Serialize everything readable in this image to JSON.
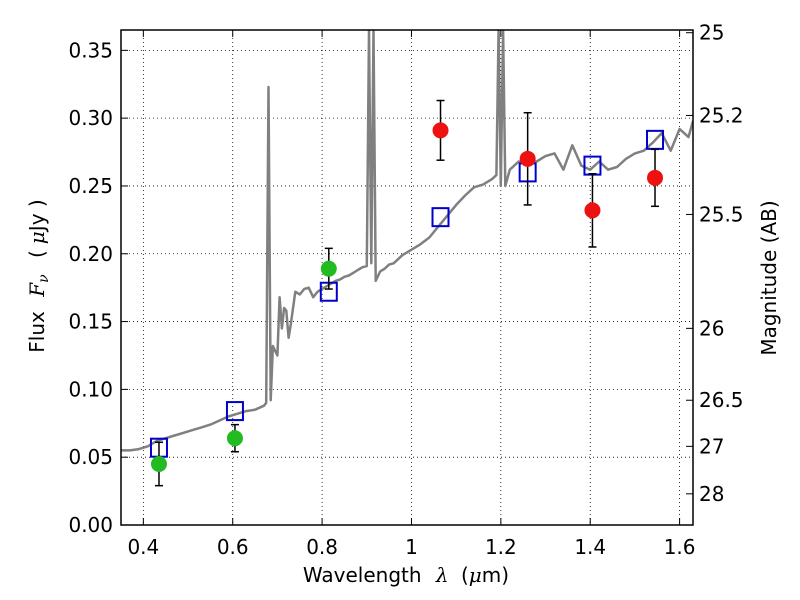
{
  "chart_data": {
    "type": "scatter",
    "xlabel": "Wavelength",
    "xlabel_symbol": "λ",
    "xlabel_unit_open": "(",
    "xlabel_unit_mu": "μ",
    "xlabel_unit_close": "m)",
    "ylabel": "Flux",
    "ylabel_symbol": "F",
    "ylabel_symbol_sub": "ν",
    "ylabel_unit_open": "(",
    "ylabel_unit_mu": "μ",
    "ylabel_unit_close": "Jy )",
    "y2label": "Magnitude (AB)",
    "xlim": [
      0.35,
      1.63
    ],
    "ylim": [
      0.0,
      0.365
    ],
    "x_ticks": [
      "0.4",
      "0.6",
      "0.8",
      "1",
      "1.2",
      "1.4",
      "1.6"
    ],
    "x_tick_values": [
      0.4,
      0.6,
      0.8,
      1.0,
      1.2,
      1.4,
      1.6
    ],
    "y_ticks": [
      "0.00",
      "0.05",
      "0.10",
      "0.15",
      "0.20",
      "0.25",
      "0.30",
      "0.35"
    ],
    "y_tick_values": [
      0.0,
      0.05,
      0.1,
      0.15,
      0.2,
      0.25,
      0.3,
      0.35
    ],
    "y2_ticks": [
      {
        "label": "25",
        "flux": 0.363
      },
      {
        "label": "25.2",
        "flux": 0.302
      },
      {
        "label": "25.5",
        "flux": 0.229
      },
      {
        "label": "26",
        "flux": 0.145
      },
      {
        "label": "26.5",
        "flux": 0.092
      },
      {
        "label": "27",
        "flux": 0.058
      },
      {
        "label": "28",
        "flux": 0.023
      }
    ],
    "grid": true,
    "series": [
      {
        "kind": "model_spectrum",
        "color": "#808080",
        "x": [
          0.35,
          0.37,
          0.39,
          0.41,
          0.43,
          0.45,
          0.47,
          0.49,
          0.51,
          0.53,
          0.55,
          0.57,
          0.59,
          0.61,
          0.63,
          0.65,
          0.67,
          0.675,
          0.68,
          0.685,
          0.69,
          0.7,
          0.705,
          0.71,
          0.715,
          0.72,
          0.725,
          0.73,
          0.74,
          0.75,
          0.76,
          0.77,
          0.78,
          0.79,
          0.8,
          0.81,
          0.82,
          0.83,
          0.84,
          0.85,
          0.86,
          0.87,
          0.88,
          0.89,
          0.9,
          0.905,
          0.91,
          0.915,
          0.92,
          0.93,
          0.94,
          0.95,
          0.96,
          0.97,
          0.98,
          0.99,
          1.0,
          1.02,
          1.04,
          1.06,
          1.08,
          1.1,
          1.12,
          1.14,
          1.16,
          1.18,
          1.19,
          1.195,
          1.2,
          1.205,
          1.21,
          1.22,
          1.24,
          1.26,
          1.28,
          1.3,
          1.32,
          1.34,
          1.36,
          1.38,
          1.4,
          1.42,
          1.44,
          1.46,
          1.48,
          1.5,
          1.52,
          1.54,
          1.56,
          1.58,
          1.6,
          1.62,
          1.63
        ],
        "y": [
          0.055,
          0.055,
          0.056,
          0.058,
          0.062,
          0.064,
          0.066,
          0.068,
          0.07,
          0.072,
          0.074,
          0.077,
          0.08,
          0.082,
          0.084,
          0.085,
          0.088,
          0.09,
          0.323,
          0.092,
          0.132,
          0.125,
          0.168,
          0.145,
          0.16,
          0.158,
          0.138,
          0.148,
          0.172,
          0.17,
          0.174,
          0.175,
          0.168,
          0.172,
          0.174,
          0.176,
          0.178,
          0.18,
          0.181,
          0.183,
          0.184,
          0.186,
          0.188,
          0.19,
          0.191,
          0.365,
          0.193,
          0.365,
          0.18,
          0.187,
          0.189,
          0.192,
          0.193,
          0.196,
          0.199,
          0.201,
          0.203,
          0.207,
          0.212,
          0.22,
          0.228,
          0.236,
          0.243,
          0.249,
          0.251,
          0.255,
          0.258,
          0.365,
          0.25,
          0.365,
          0.25,
          0.262,
          0.268,
          0.266,
          0.268,
          0.272,
          0.274,
          0.262,
          0.28,
          0.265,
          0.262,
          0.268,
          0.262,
          0.264,
          0.27,
          0.274,
          0.276,
          0.282,
          0.289,
          0.276,
          0.292,
          0.286,
          0.298
        ]
      },
      {
        "kind": "model_photometry",
        "marker": "open-square",
        "color": "#0000cc",
        "x": [
          0.435,
          0.605,
          0.815,
          1.065,
          1.26,
          1.405,
          1.545
        ],
        "y": [
          0.057,
          0.084,
          0.172,
          0.227,
          0.26,
          0.265,
          0.284
        ]
      },
      {
        "kind": "observed_optical",
        "marker": "filled-circle",
        "color": "#22bb22",
        "x": [
          0.435,
          0.605,
          0.815
        ],
        "y": [
          0.045,
          0.064,
          0.189
        ],
        "yerr": [
          0.016,
          0.01,
          0.015
        ]
      },
      {
        "kind": "observed_nir",
        "marker": "filled-circle",
        "color": "#ee1111",
        "x": [
          1.065,
          1.26,
          1.405,
          1.545
        ],
        "y": [
          0.291,
          0.27,
          0.232,
          0.256
        ],
        "yerr": [
          0.022,
          0.034,
          0.027,
          0.021
        ]
      }
    ]
  }
}
